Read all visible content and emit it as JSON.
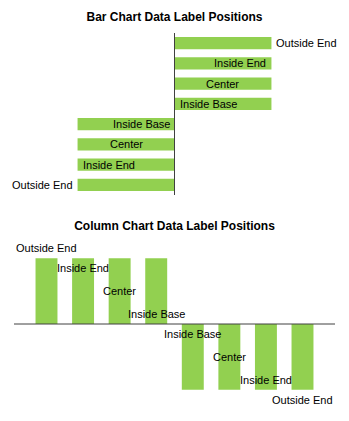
{
  "chart_data": [
    {
      "type": "bar",
      "title": "Bar Chart Data Label Positions",
      "orientation": "horizontal",
      "categories": [
        null,
        null,
        null,
        null,
        null,
        null,
        null,
        null
      ],
      "values": [
        -5,
        -5,
        -5,
        -5,
        5,
        5,
        5,
        5
      ],
      "color": "#92d050",
      "annotations": [
        "Outside End",
        "Inside End",
        "Center",
        "Inside Base",
        "Inside Base",
        "Center",
        "Inside End",
        "Outside End"
      ],
      "xlim": [
        -9,
        9
      ],
      "xticks": [],
      "tick_labels": false
    },
    {
      "type": "bar",
      "title": "Column Chart Data Label Positions",
      "categories": [
        null,
        null,
        null,
        null,
        null,
        null,
        null,
        null
      ],
      "values": [
        5,
        5,
        5,
        5,
        -5,
        -5,
        -5,
        -5
      ],
      "color": "#92d050",
      "annotations": [
        "Outside End",
        "Inside End",
        "Center",
        "Inside Base",
        "Inside Base",
        "Center",
        "Inside End",
        "Outside End"
      ],
      "ylim": [
        -6,
        6
      ],
      "yticks": [],
      "tick_labels": false
    }
  ]
}
